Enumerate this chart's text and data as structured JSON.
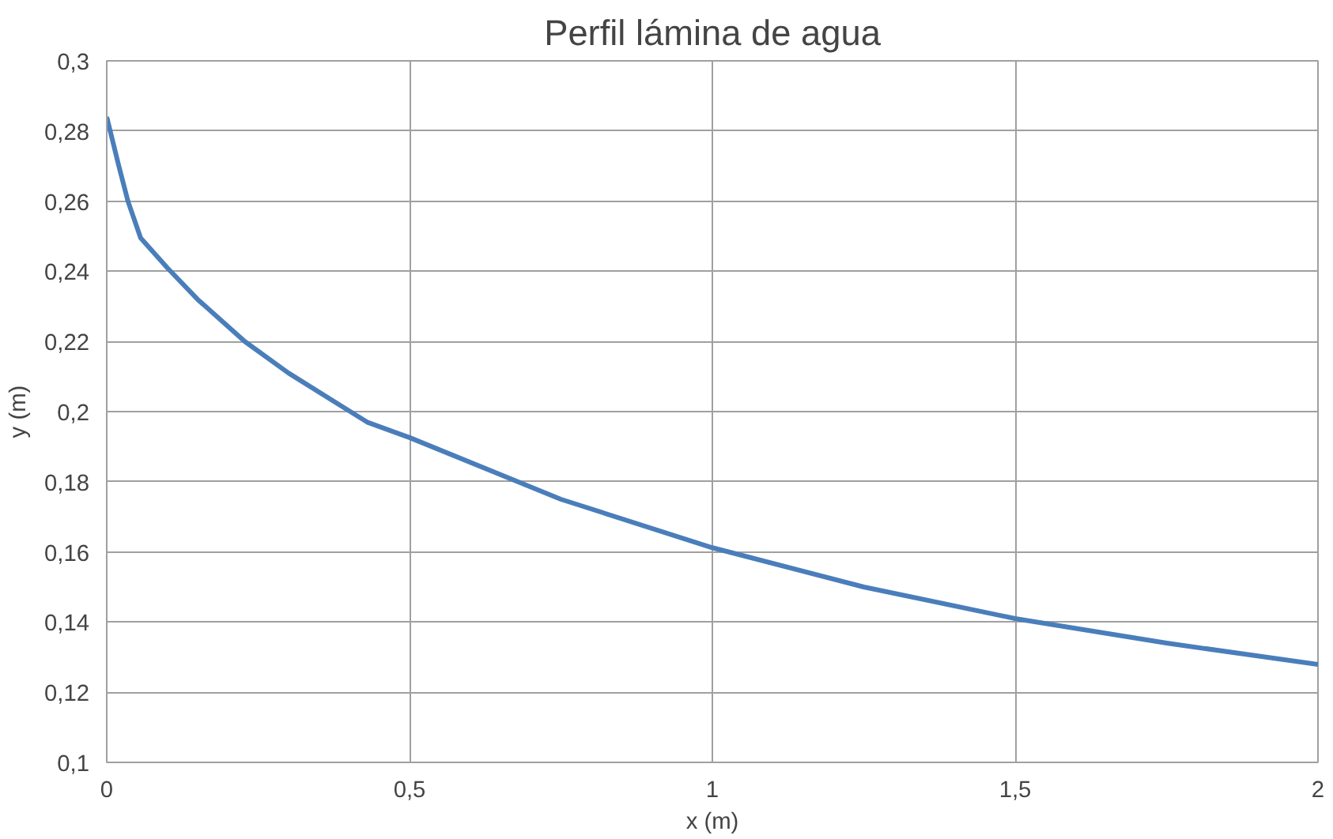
{
  "chart_data": {
    "type": "line",
    "title": "Perfil lámina de agua",
    "xlabel": "x (m)",
    "ylabel": "y (m)",
    "x": [
      0,
      0.02,
      0.035,
      0.056,
      0.1,
      0.15,
      0.228,
      0.3,
      0.43,
      0.5,
      0.75,
      1,
      1.25,
      1.5,
      1.75,
      2
    ],
    "series": [
      {
        "color": "#4a7ebb",
        "values": [
          0.284,
          0.27,
          0.26,
          0.2495,
          0.241,
          0.232,
          0.22,
          0.211,
          0.197,
          0.1926,
          0.175,
          0.1612,
          0.15,
          0.141,
          0.134,
          0.1279
        ]
      }
    ],
    "xlim": [
      0,
      2
    ],
    "ylim": [
      0.1,
      0.3
    ],
    "xticks": [
      0,
      {
        "value": 0.5,
        "label": "0,5"
      },
      1,
      {
        "value": 1.5,
        "label": "1,5"
      },
      2
    ],
    "yticks": [
      {
        "value": 0.1,
        "label": "0,1"
      },
      {
        "value": 0.12,
        "label": "0,12"
      },
      {
        "value": 0.14,
        "label": "0,14"
      },
      {
        "value": 0.16,
        "label": "0,16"
      },
      {
        "value": 0.18,
        "label": "0,18"
      },
      {
        "value": 0.2,
        "label": "0,2"
      },
      {
        "value": 0.22,
        "label": "0,22"
      },
      {
        "value": 0.24,
        "label": "0,24"
      },
      {
        "value": 0.26,
        "label": "0,26"
      },
      {
        "value": 0.28,
        "label": "0,28"
      },
      {
        "value": 0.3,
        "label": "0,3"
      }
    ],
    "grid": true,
    "marker": "none",
    "line_style": "solid"
  }
}
